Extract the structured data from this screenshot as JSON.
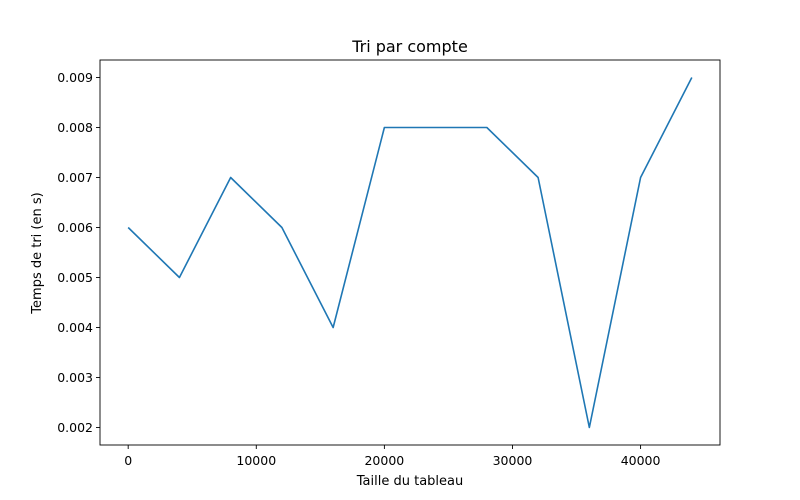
{
  "chart_data": {
    "type": "line",
    "title": "Tri par compte",
    "xlabel": "Taille du tableau",
    "ylabel": "Temps de tri (en s)",
    "xlim": [
      -2200,
      46200
    ],
    "ylim": [
      0.00165,
      0.00935
    ],
    "xticks": [
      0,
      10000,
      20000,
      30000,
      40000
    ],
    "xtick_labels": [
      "0",
      "10000",
      "20000",
      "30000",
      "40000"
    ],
    "yticks": [
      0.002,
      0.003,
      0.004,
      0.005,
      0.006,
      0.007,
      0.008,
      0.009
    ],
    "ytick_labels": [
      "0.002",
      "0.003",
      "0.004",
      "0.005",
      "0.006",
      "0.007",
      "0.008",
      "0.009"
    ],
    "grid": false,
    "series": [
      {
        "color": "#1f77b4",
        "x": [
          0,
          4000,
          8000,
          12000,
          16000,
          20000,
          24000,
          28000,
          32000,
          36000,
          40000,
          44000
        ],
        "y": [
          0.006,
          0.005,
          0.007,
          0.006,
          0.004,
          0.008,
          0.008,
          0.008,
          0.007,
          0.002,
          0.007,
          0.009
        ]
      }
    ]
  }
}
